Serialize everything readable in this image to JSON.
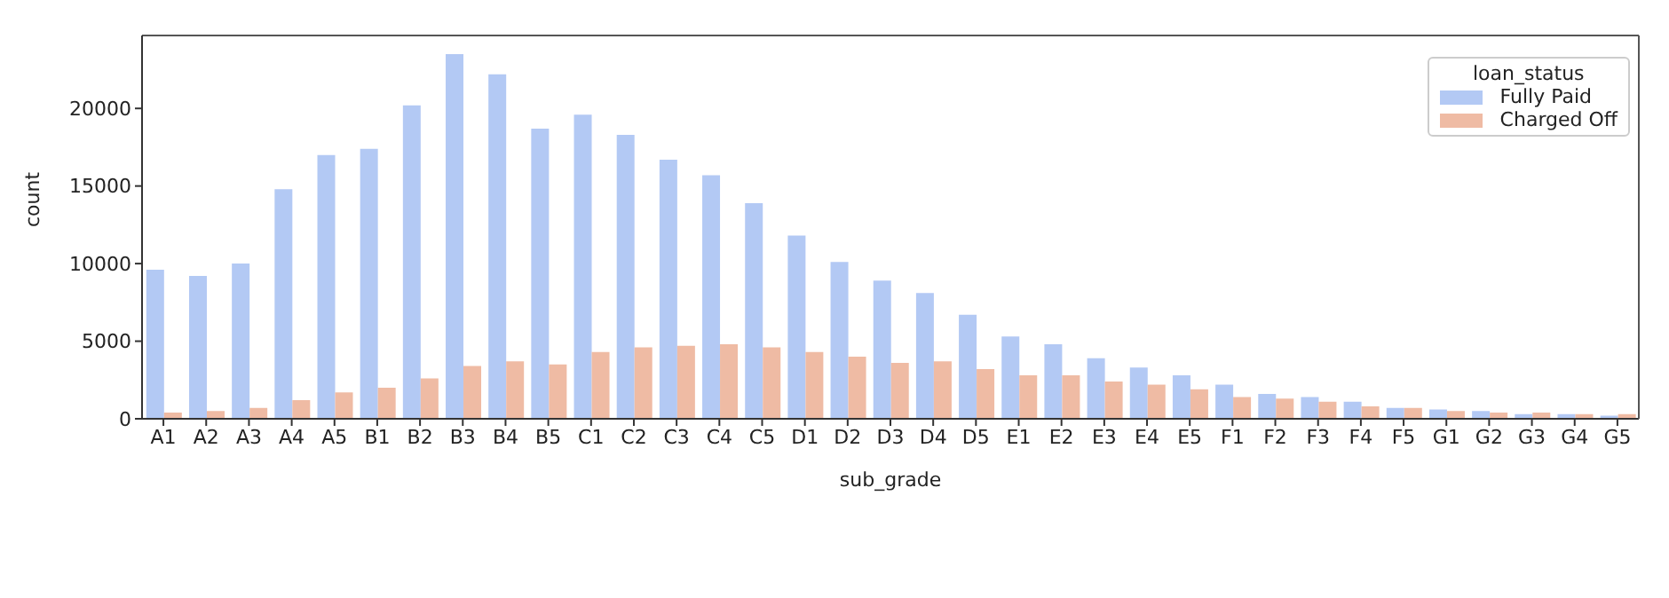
{
  "chart_data": {
    "type": "bar",
    "xlabel": "sub_grade",
    "ylabel": "count",
    "legend_title": "loan_status",
    "categories": [
      "A1",
      "A2",
      "A3",
      "A4",
      "A5",
      "B1",
      "B2",
      "B3",
      "B4",
      "B5",
      "C1",
      "C2",
      "C3",
      "C4",
      "C5",
      "D1",
      "D2",
      "D3",
      "D4",
      "D5",
      "E1",
      "E2",
      "E3",
      "E4",
      "E5",
      "F1",
      "F2",
      "F3",
      "F4",
      "F5",
      "G1",
      "G2",
      "G3",
      "G4",
      "G5"
    ],
    "series": [
      {
        "name": "Fully Paid",
        "color": "#b3c9f4",
        "values": [
          9600,
          9200,
          10000,
          14800,
          17000,
          17400,
          20200,
          23500,
          22200,
          18700,
          19600,
          18300,
          16700,
          15700,
          13900,
          11800,
          10100,
          8900,
          8100,
          6700,
          5300,
          4800,
          3900,
          3300,
          2800,
          2200,
          1600,
          1400,
          1100,
          700,
          600,
          500,
          300,
          300,
          200
        ]
      },
      {
        "name": "Charged Off",
        "color": "#efbba4",
        "values": [
          400,
          500,
          700,
          1200,
          1700,
          2000,
          2600,
          3400,
          3700,
          3500,
          4300,
          4600,
          4700,
          4800,
          4600,
          4300,
          4000,
          3600,
          3700,
          3200,
          2800,
          2800,
          2400,
          2200,
          1900,
          1400,
          1300,
          1100,
          800,
          700,
          500,
          400,
          400,
          300,
          300
        ]
      }
    ],
    "ylim": [
      0,
      24700
    ],
    "yticks": [
      0,
      5000,
      10000,
      15000,
      20000
    ],
    "grid": false,
    "legend": "top right"
  }
}
